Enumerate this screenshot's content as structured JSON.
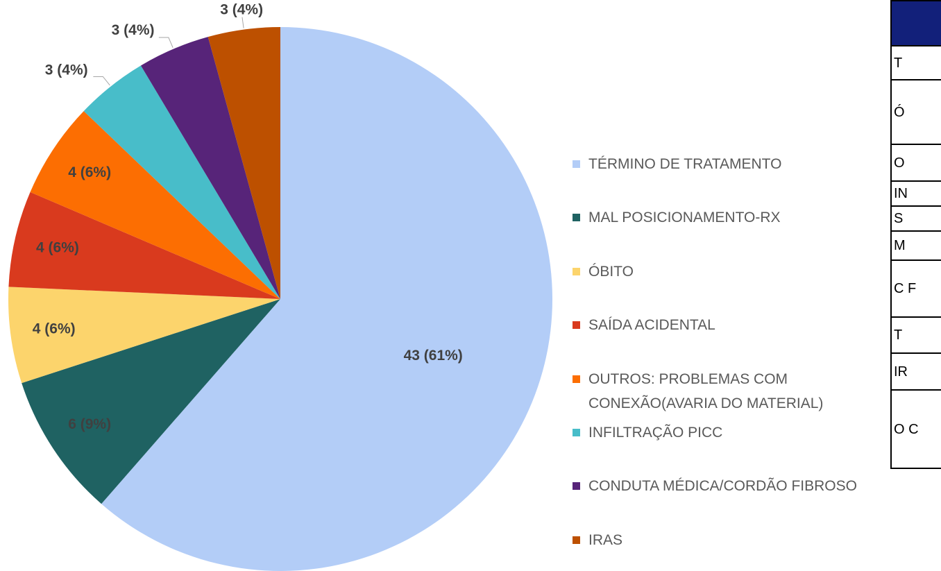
{
  "chart_data": {
    "type": "pie",
    "categories": [
      "TÉRMINO DE TRATAMENTO",
      "MAL POSICIONAMENTO-RX",
      "ÓBITO",
      "SAÍDA ACIDENTAL",
      "OUTROS: PROBLEMAS COM CONEXÃO(AVARIA DO MATERIAL)",
      "INFILTRAÇÃO PICC",
      "CONDUTA MÉDICA/CORDÃO FIBROSO",
      "IRAS"
    ],
    "values": [
      43,
      6,
      4,
      4,
      4,
      3,
      3,
      3
    ],
    "value_labels": [
      "43 (61%)",
      "6 (9%)",
      "4 (6%)",
      "4 (6%)",
      "4 (6%)",
      "3 (4%)",
      "3 (4%)",
      "3 (4%)"
    ],
    "colors": [
      "#b3cdf7",
      "#1f6262",
      "#fcd46c",
      "#d93a1e",
      "#fc6e02",
      "#48bdc9",
      "#572479",
      "#bd5000"
    ],
    "legend": "right"
  },
  "table": {
    "rows": [
      [
        "T"
      ],
      [
        "Ó"
      ],
      [
        "O"
      ],
      [
        "IN"
      ],
      [
        "S"
      ],
      [
        "M"
      ],
      [
        "C F"
      ],
      [
        "T"
      ],
      [
        "IR"
      ],
      [
        "O C"
      ]
    ]
  }
}
